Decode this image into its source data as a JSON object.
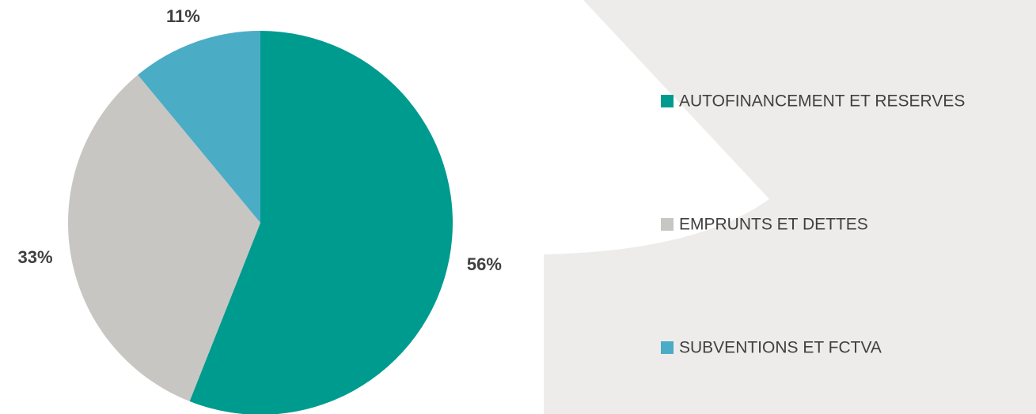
{
  "chart_data": {
    "type": "pie",
    "categories": [
      "AUTOFINANCEMENT ET RESERVES",
      "EMPRUNTS ET DETTES",
      "SUBVENTIONS ET FCTVA"
    ],
    "values": [
      56,
      33,
      11
    ],
    "value_labels": [
      "56%",
      "33%",
      "11%"
    ],
    "colors": [
      "#009b8f",
      "#c8c6c2",
      "#4bacc6"
    ]
  }
}
